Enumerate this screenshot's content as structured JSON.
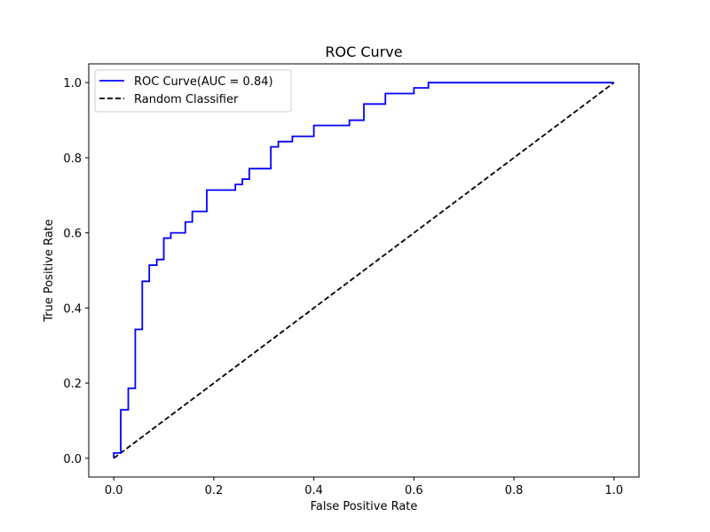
{
  "chart_data": {
    "type": "line",
    "title": "ROC Curve",
    "xlabel": "False Positive Rate",
    "ylabel": "True Positive Rate",
    "xlim": [
      -0.05,
      1.05
    ],
    "ylim": [
      -0.05,
      1.05
    ],
    "xticks": [
      "0.0",
      "0.2",
      "0.4",
      "0.6",
      "0.8",
      "1.0"
    ],
    "yticks": [
      "0.0",
      "0.2",
      "0.4",
      "0.6",
      "0.8",
      "1.0"
    ],
    "grid": false,
    "legend_position": "top-left",
    "series": [
      {
        "name": "ROC Curve(AUC =  0.84)",
        "color": "#0000ff",
        "style": "solid",
        "step": true,
        "x": [
          0.0,
          0.0,
          0.014,
          0.014,
          0.029,
          0.029,
          0.043,
          0.043,
          0.057,
          0.057,
          0.071,
          0.071,
          0.086,
          0.086,
          0.1,
          0.1,
          0.114,
          0.114,
          0.143,
          0.143,
          0.157,
          0.157,
          0.186,
          0.186,
          0.243,
          0.243,
          0.257,
          0.257,
          0.271,
          0.271,
          0.314,
          0.314,
          0.329,
          0.329,
          0.357,
          0.357,
          0.4,
          0.4,
          0.471,
          0.471,
          0.5,
          0.5,
          0.543,
          0.543,
          0.6,
          0.6,
          0.629,
          0.629,
          1.0
        ],
        "y": [
          0.0,
          0.014,
          0.014,
          0.129,
          0.129,
          0.186,
          0.186,
          0.343,
          0.343,
          0.471,
          0.471,
          0.514,
          0.514,
          0.529,
          0.529,
          0.586,
          0.586,
          0.6,
          0.6,
          0.629,
          0.629,
          0.657,
          0.657,
          0.714,
          0.714,
          0.729,
          0.729,
          0.743,
          0.743,
          0.771,
          0.771,
          0.829,
          0.829,
          0.843,
          0.843,
          0.857,
          0.857,
          0.886,
          0.886,
          0.9,
          0.9,
          0.943,
          0.943,
          0.971,
          0.971,
          0.986,
          0.986,
          1.0,
          1.0
        ]
      },
      {
        "name": "Random Classifier",
        "color": "#000000",
        "style": "dashed",
        "x": [
          0.0,
          1.0
        ],
        "y": [
          0.0,
          1.0
        ]
      }
    ]
  }
}
